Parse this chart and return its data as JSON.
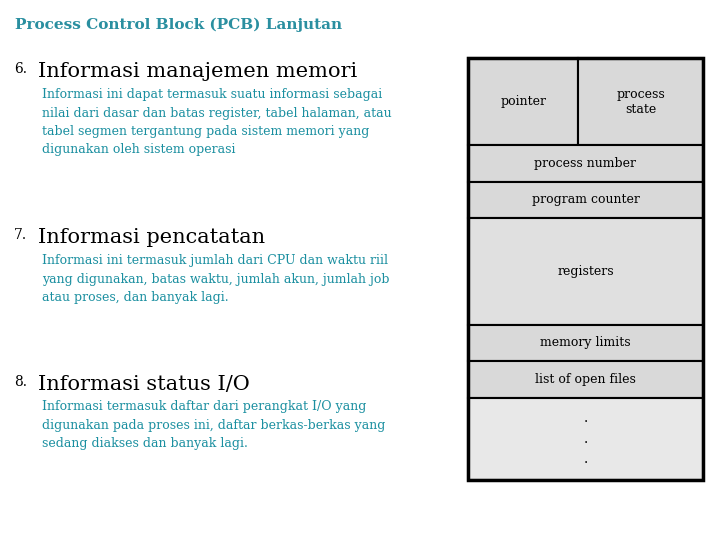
{
  "title": "Process Control Block (PCB) Lanjutan",
  "title_color": "#2a8fa0",
  "title_fontsize": 11,
  "background_color": "#ffffff",
  "text_color_heading": "#000000",
  "text_color_body": "#1a8fa0",
  "heading_fontsize": 15,
  "body_fontsize": 9,
  "number_fontsize": 10,
  "sections": [
    {
      "number": "6.",
      "heading": "Informasi manajemen memori",
      "body": "Informasi ini dapat termasuk suatu informasi sebagai\nnilai dari dasar dan batas register, tabel halaman, atau\ntabel segmen tergantung pada sistem memori yang\ndigunakan oleh sistem operasi"
    },
    {
      "number": "7.",
      "heading": "Informasi pencatatan",
      "body": "Informasi ini termasuk jumlah dari CPU dan waktu riil\nyang digunakan, batas waktu, jumlah akun, jumlah job\natau proses, dan banyak lagi."
    },
    {
      "number": "8.",
      "heading": "Informasi status I/O",
      "body": "Informasi termasuk daftar dari perangkat I/O yang\ndigunakan pada proses ini, daftar berkas-berkas yang\nsedang diakses dan banyak lagi."
    }
  ],
  "diagram": {
    "box_color": "#d9d9d9",
    "box_border": "#000000",
    "text_color": "#000000",
    "rows": [
      {
        "type": "split",
        "left": "pointer",
        "right": "process\nstate"
      },
      {
        "type": "full",
        "text": "process number"
      },
      {
        "type": "full",
        "text": "program counter"
      },
      {
        "type": "tall",
        "text": "registers"
      },
      {
        "type": "full",
        "text": "memory limits"
      },
      {
        "type": "full",
        "text": "list of open files"
      },
      {
        "type": "dots",
        "text": ".\n.\n."
      }
    ]
  }
}
